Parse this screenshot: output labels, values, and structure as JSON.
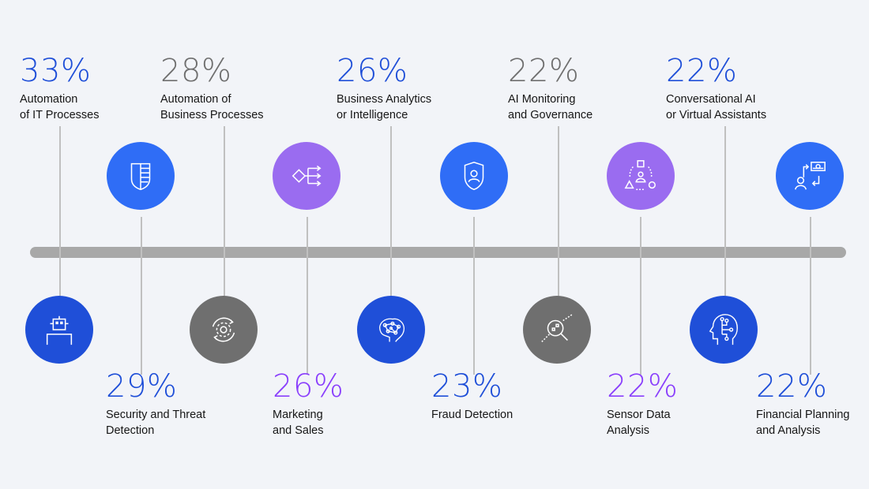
{
  "colors": {
    "background": "#f2f4f8",
    "axis": "#a8a8a8",
    "stem": "#c0c0c0",
    "blue_dark": "#1f4fd8",
    "blue": "#2f6df6",
    "purple": "#9a6cf0",
    "gray": "#6f6f6f",
    "pct_blue": "#1f4fd8",
    "pct_gray": "#6f6f6f",
    "pct_purple": "#8a3ffc"
  },
  "items": [
    {
      "percent": "33%",
      "label": "Automation\nof IT Processes",
      "pct_color": "pct_blue",
      "circle_color": "blue_dark",
      "icon": "robot-icon"
    },
    {
      "percent": "29%",
      "label": "Security and Threat\nDetection",
      "pct_color": "pct_blue",
      "circle_color": "blue",
      "icon": "shield-icon"
    },
    {
      "percent": "28%",
      "label": "Automation of\nBusiness Processes",
      "pct_color": "pct_gray",
      "circle_color": "gray",
      "icon": "gear-cycle-icon"
    },
    {
      "percent": "26%",
      "label": "Marketing\nand Sales",
      "pct_color": "pct_purple",
      "circle_color": "purple",
      "icon": "decision-flow-icon"
    },
    {
      "percent": "26%",
      "label": "Business Analytics\nor Intelligence",
      "pct_color": "pct_blue",
      "circle_color": "blue_dark",
      "icon": "brain-network-icon"
    },
    {
      "percent": "23%",
      "label": "Fraud Detection",
      "pct_color": "pct_blue",
      "circle_color": "blue",
      "icon": "user-shield-icon"
    },
    {
      "percent": "22%",
      "label": "AI Monitoring\nand Governance",
      "pct_color": "pct_gray",
      "circle_color": "gray",
      "icon": "magnifier-icon"
    },
    {
      "percent": "22%",
      "label": "Sensor Data\nAnalysis",
      "pct_color": "pct_purple",
      "circle_color": "purple",
      "icon": "shapes-user-icon"
    },
    {
      "percent": "22%",
      "label": "Conversational AI\nor Virtual Assistants",
      "pct_color": "pct_blue",
      "circle_color": "blue_dark",
      "icon": "ai-head-icon"
    },
    {
      "percent": "22%",
      "label": "Financial Planning\nand Analysis",
      "pct_color": "pct_blue",
      "circle_color": "blue",
      "icon": "money-exchange-icon"
    }
  ]
}
